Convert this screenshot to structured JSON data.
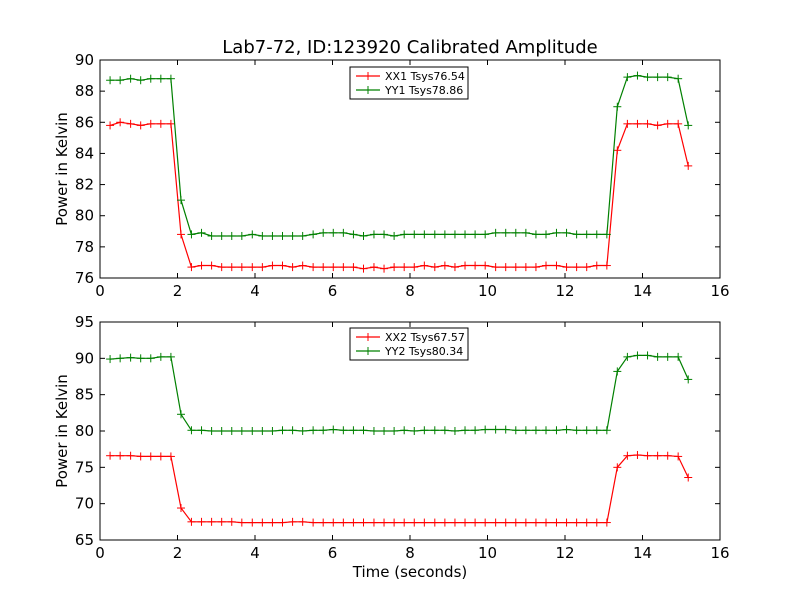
{
  "title": "Lab7-72, ID:123920 Calibrated Amplitude",
  "chart_data": [
    {
      "type": "line",
      "ylabel": "Power in Kelvin",
      "xlabel": "",
      "xlim": [
        0,
        16
      ],
      "ylim": [
        76,
        90
      ],
      "xticks": [
        0,
        2,
        4,
        6,
        8,
        10,
        12,
        14,
        16
      ],
      "yticks": [
        76,
        78,
        80,
        82,
        84,
        86,
        88,
        90
      ],
      "grid": false,
      "legend": "top-center",
      "x": [
        0.26,
        0.52,
        0.79,
        1.05,
        1.31,
        1.57,
        1.83,
        2.09,
        2.36,
        2.62,
        2.88,
        3.14,
        3.4,
        3.66,
        3.93,
        4.19,
        4.45,
        4.71,
        4.97,
        5.23,
        5.5,
        5.76,
        6.02,
        6.28,
        6.54,
        6.8,
        7.07,
        7.33,
        7.59,
        7.85,
        8.11,
        8.37,
        8.64,
        8.9,
        9.16,
        9.42,
        9.68,
        9.94,
        10.21,
        10.47,
        10.73,
        10.99,
        11.25,
        11.51,
        11.78,
        12.04,
        12.3,
        12.56,
        12.82,
        13.08,
        13.35,
        13.61,
        13.87,
        14.13,
        14.39,
        14.65,
        14.92,
        15.18
      ],
      "series": [
        {
          "name": "XX1 Tsys76.54",
          "color": "#ff0000",
          "values": [
            85.8,
            86.0,
            85.9,
            85.8,
            85.9,
            85.9,
            85.9,
            78.8,
            76.7,
            76.8,
            76.8,
            76.7,
            76.7,
            76.7,
            76.7,
            76.7,
            76.8,
            76.8,
            76.7,
            76.8,
            76.7,
            76.7,
            76.7,
            76.7,
            76.7,
            76.6,
            76.7,
            76.6,
            76.7,
            76.7,
            76.7,
            76.8,
            76.7,
            76.8,
            76.7,
            76.8,
            76.8,
            76.8,
            76.7,
            76.7,
            76.7,
            76.7,
            76.7,
            76.8,
            76.8,
            76.7,
            76.7,
            76.7,
            76.8,
            76.8,
            84.2,
            85.9,
            85.9,
            85.9,
            85.8,
            85.9,
            85.9,
            83.2
          ]
        },
        {
          "name": "YY1 Tsys78.86",
          "color": "#008000",
          "values": [
            88.7,
            88.7,
            88.8,
            88.7,
            88.8,
            88.8,
            88.8,
            81.0,
            78.8,
            78.9,
            78.7,
            78.7,
            78.7,
            78.7,
            78.8,
            78.7,
            78.7,
            78.7,
            78.7,
            78.7,
            78.8,
            78.9,
            78.9,
            78.9,
            78.8,
            78.7,
            78.8,
            78.8,
            78.7,
            78.8,
            78.8,
            78.8,
            78.8,
            78.8,
            78.8,
            78.8,
            78.8,
            78.8,
            78.9,
            78.9,
            78.9,
            78.9,
            78.8,
            78.8,
            78.9,
            78.9,
            78.8,
            78.8,
            78.8,
            78.8,
            87.0,
            88.9,
            89.0,
            88.9,
            88.9,
            88.9,
            88.8,
            85.8
          ]
        }
      ]
    },
    {
      "type": "line",
      "ylabel": "Power in Kelvin",
      "xlabel": "Time (seconds)",
      "xlim": [
        0,
        16
      ],
      "ylim": [
        65,
        95
      ],
      "xticks": [
        0,
        2,
        4,
        6,
        8,
        10,
        12,
        14,
        16
      ],
      "yticks": [
        65,
        70,
        75,
        80,
        85,
        90,
        95
      ],
      "grid": false,
      "legend": "top-center",
      "x": [
        0.26,
        0.52,
        0.79,
        1.05,
        1.31,
        1.57,
        1.83,
        2.09,
        2.36,
        2.62,
        2.88,
        3.14,
        3.4,
        3.66,
        3.93,
        4.19,
        4.45,
        4.71,
        4.97,
        5.23,
        5.5,
        5.76,
        6.02,
        6.28,
        6.54,
        6.8,
        7.07,
        7.33,
        7.59,
        7.85,
        8.11,
        8.37,
        8.64,
        8.9,
        9.16,
        9.42,
        9.68,
        9.94,
        10.21,
        10.47,
        10.73,
        10.99,
        11.25,
        11.51,
        11.78,
        12.04,
        12.3,
        12.56,
        12.82,
        13.08,
        13.35,
        13.61,
        13.87,
        14.13,
        14.39,
        14.65,
        14.92,
        15.18
      ],
      "series": [
        {
          "name": "XX2 Tsys67.57",
          "color": "#ff0000",
          "values": [
            76.6,
            76.6,
            76.6,
            76.5,
            76.5,
            76.5,
            76.5,
            69.4,
            67.5,
            67.5,
            67.5,
            67.5,
            67.5,
            67.4,
            67.4,
            67.4,
            67.4,
            67.4,
            67.5,
            67.5,
            67.4,
            67.4,
            67.4,
            67.4,
            67.4,
            67.4,
            67.4,
            67.4,
            67.4,
            67.4,
            67.4,
            67.4,
            67.4,
            67.4,
            67.4,
            67.4,
            67.4,
            67.4,
            67.4,
            67.4,
            67.4,
            67.4,
            67.4,
            67.4,
            67.4,
            67.4,
            67.4,
            67.4,
            67.4,
            67.4,
            75.0,
            76.6,
            76.7,
            76.6,
            76.6,
            76.6,
            76.5,
            73.6
          ]
        },
        {
          "name": "YY2 Tsys80.34",
          "color": "#008000",
          "values": [
            89.9,
            90.0,
            90.1,
            90.0,
            90.0,
            90.2,
            90.2,
            82.3,
            80.1,
            80.1,
            80.0,
            80.0,
            80.0,
            80.0,
            80.0,
            80.0,
            80.0,
            80.1,
            80.1,
            80.0,
            80.1,
            80.1,
            80.2,
            80.1,
            80.1,
            80.1,
            80.0,
            80.0,
            80.0,
            80.1,
            80.0,
            80.1,
            80.1,
            80.1,
            80.0,
            80.1,
            80.1,
            80.2,
            80.2,
            80.2,
            80.1,
            80.1,
            80.1,
            80.1,
            80.1,
            80.2,
            80.1,
            80.1,
            80.1,
            80.1,
            88.2,
            90.2,
            90.4,
            90.4,
            90.2,
            90.2,
            90.2,
            87.1
          ]
        }
      ]
    }
  ]
}
